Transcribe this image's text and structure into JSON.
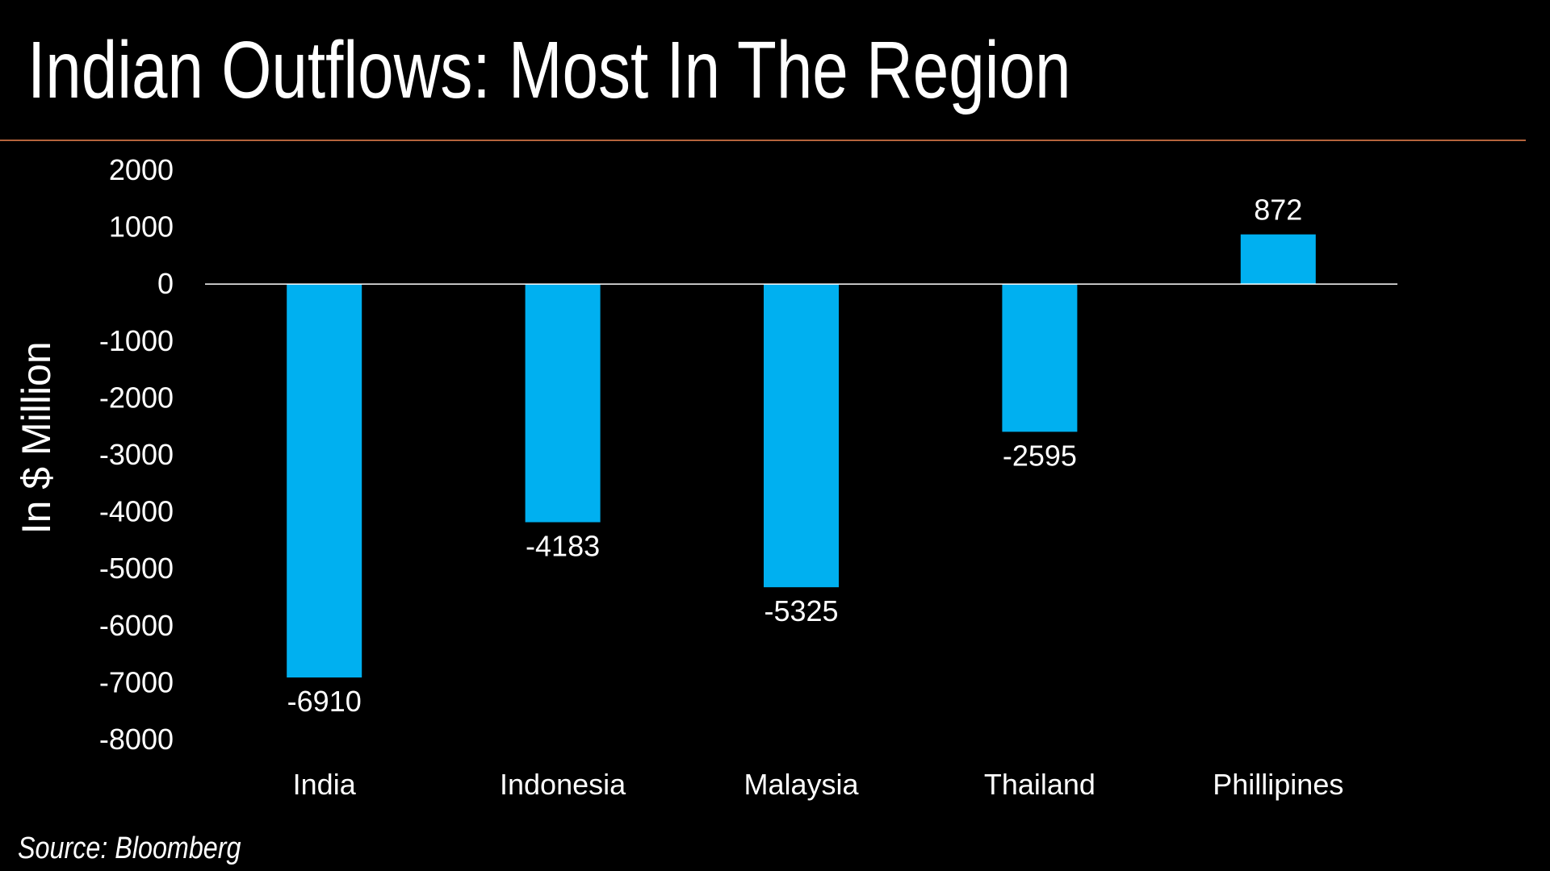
{
  "header": {
    "title": "Indian Outflows: Most In The Region"
  },
  "footer": {
    "source": "Source: Bloomberg"
  },
  "colors": {
    "bar": "#00b0f0",
    "background": "#000000",
    "divider": "#b5643c",
    "text": "#ffffff"
  },
  "chart_data": {
    "type": "bar",
    "title": "",
    "xlabel": "",
    "ylabel": "In $ Million",
    "categories": [
      "India",
      "Indonesia",
      "Malaysia",
      "Thailand",
      "Phillipines"
    ],
    "values": [
      -6910,
      -4183,
      -5325,
      -2595,
      872
    ],
    "data_labels": [
      "-6910",
      "-4183",
      "-5325",
      "-2595",
      "872"
    ],
    "ylim": [
      -8000,
      2000
    ],
    "yticks": [
      2000,
      1000,
      0,
      -1000,
      -2000,
      -3000,
      -4000,
      -5000,
      -6000,
      -7000,
      -8000
    ],
    "grid": false,
    "legend": "none"
  }
}
